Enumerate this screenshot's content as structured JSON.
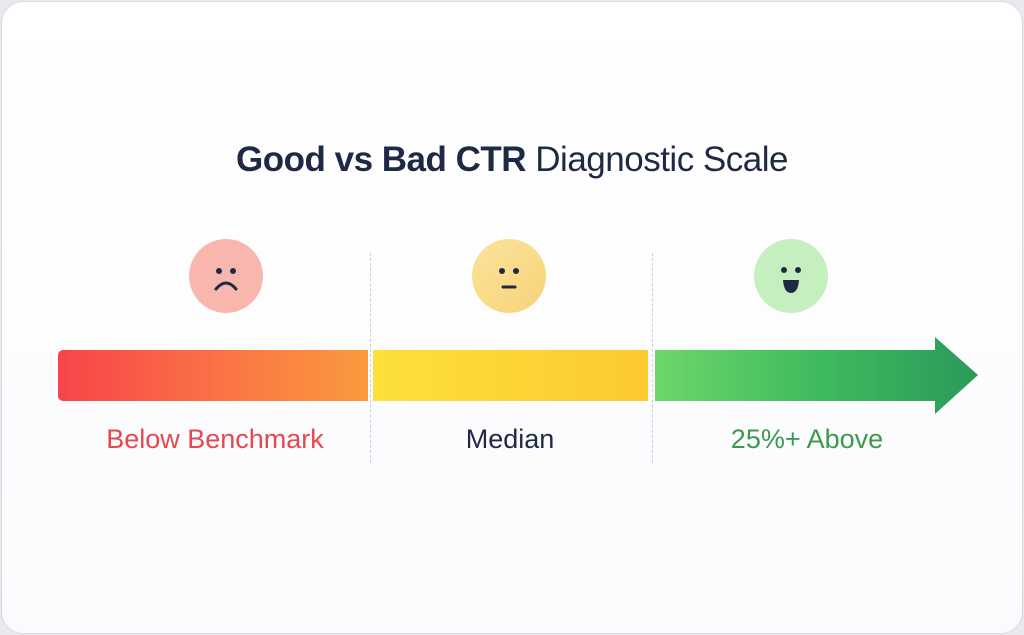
{
  "title": {
    "bold": "Good vs Bad CTR",
    "regular": "Diagnostic Scale"
  },
  "segments": [
    {
      "label": "Below Benchmark",
      "face": "sad-face-icon",
      "color": "#e5484d",
      "gradient": [
        "#f7444a",
        "#fa9a3c"
      ],
      "face_color": "#f9b6ae"
    },
    {
      "label": "Median",
      "face": "neutral-face-icon",
      "color": "#1e2a45",
      "gradient": [
        "#fde03a",
        "#fcc930"
      ],
      "face_color": "#fbdd8a"
    },
    {
      "label": "25%+ Above",
      "face": "happy-face-icon",
      "color": "#3c9a4f",
      "gradient": [
        "#6dd66a",
        "#2b9a5a"
      ],
      "face_color": "#c6efc0"
    }
  ]
}
